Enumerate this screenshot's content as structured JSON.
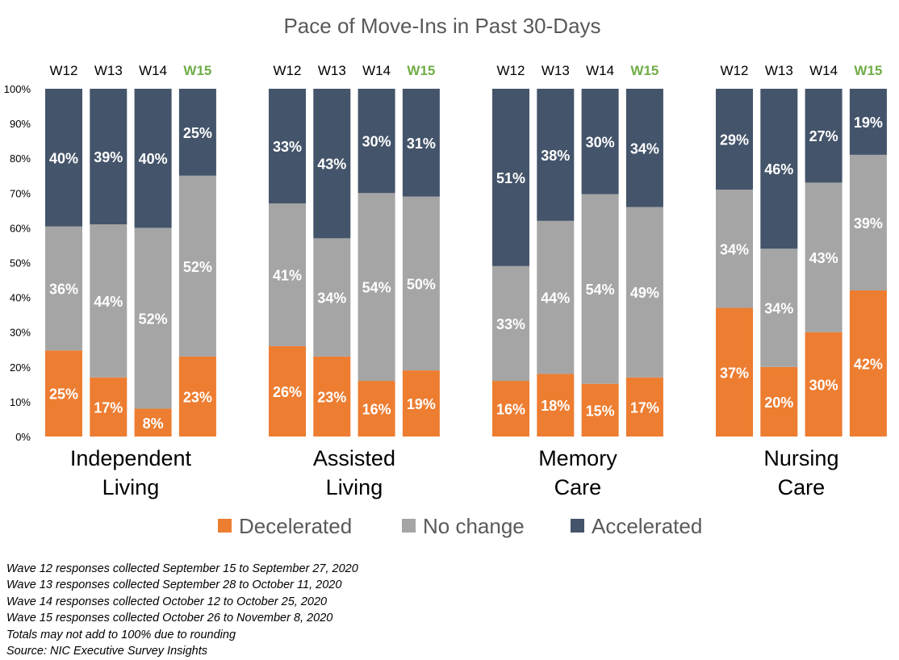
{
  "chart_data": {
    "type": "bar",
    "stacked": true,
    "title": "Pace of Move-Ins in Past 30-Days",
    "groups": [
      "Independent Living",
      "Assisted Living",
      "Memory Care",
      "Nursing Care"
    ],
    "group_label_lines": [
      [
        "Independent",
        "Living"
      ],
      [
        "Assisted",
        "Living"
      ],
      [
        "Memory",
        "Care"
      ],
      [
        "Nursing",
        "Care"
      ]
    ],
    "waves": [
      "W12",
      "W13",
      "W14",
      "W15"
    ],
    "highlight_wave": "W15",
    "y_ticks": [
      "0%",
      "10%",
      "20%",
      "30%",
      "40%",
      "50%",
      "60%",
      "70%",
      "80%",
      "90%",
      "100%"
    ],
    "ylim": [
      0,
      100
    ],
    "grid": false,
    "legend_position": "bottom",
    "series": [
      {
        "name": "Decelerated",
        "color": "#ED7D31",
        "values": [
          [
            25,
            17,
            8,
            23
          ],
          [
            26,
            23,
            16,
            19
          ],
          [
            16,
            18,
            15,
            17
          ],
          [
            37,
            20,
            30,
            42
          ]
        ]
      },
      {
        "name": "No change",
        "color": "#A5A5A5",
        "values": [
          [
            36,
            44,
            52,
            52
          ],
          [
            41,
            34,
            54,
            50
          ],
          [
            33,
            44,
            54,
            49
          ],
          [
            34,
            34,
            43,
            39
          ]
        ]
      },
      {
        "name": "Accelerated",
        "color": "#44546A",
        "values": [
          [
            40,
            39,
            40,
            25
          ],
          [
            33,
            43,
            30,
            31
          ],
          [
            51,
            38,
            30,
            34
          ],
          [
            29,
            46,
            27,
            19
          ]
        ]
      }
    ]
  },
  "colors": {
    "highlight_label": "#70AD47",
    "label_text": "#ffffff",
    "axis_text": "#000000",
    "title_text": "#595959",
    "legend_text": "#595959"
  },
  "notes": [
    "Wave 12 responses collected September 15 to September 27, 2020",
    "Wave 13 responses collected September 28 to October 11, 2020",
    "Wave 14 responses collected October 12 to October 25, 2020",
    "Wave 15 responses collected October 26 to November 8, 2020",
    "Totals may not add to 100% due to rounding",
    "Source: NIC Executive Survey Insights"
  ]
}
